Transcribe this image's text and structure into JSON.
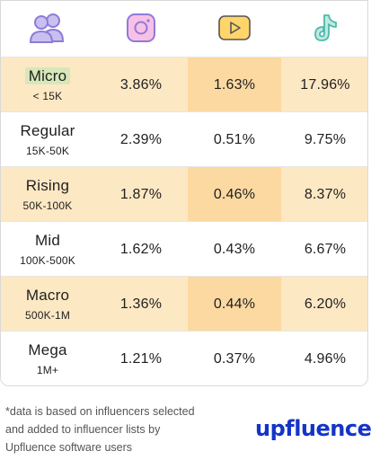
{
  "icons": {
    "users": "users-icon",
    "instagram": "instagram-icon",
    "youtube": "youtube-icon",
    "tiktok": "tiktok-icon"
  },
  "colors": {
    "row_shade": "#fde8c4",
    "youtube_shade": "#fcd9a1",
    "micro_highlight": "#d6e8b9",
    "brand_blue": "#1434c8",
    "icon_purple": "#8f7ad9",
    "icon_pink": "#f7c1e6",
    "icon_yellow": "#ffd56b",
    "icon_teal": "#4fb9a8"
  },
  "chart_data": {
    "type": "table",
    "columns": [
      "",
      "Instagram",
      "YouTube",
      "TikTok"
    ],
    "rows": [
      {
        "tier": "Micro",
        "range": "< 15K",
        "values": [
          "3.86%",
          "1.63%",
          "17.96%"
        ],
        "shaded": true
      },
      {
        "tier": "Regular",
        "range": "15K-50K",
        "values": [
          "2.39%",
          "0.51%",
          "9.75%"
        ],
        "shaded": false
      },
      {
        "tier": "Rising",
        "range": "50K-100K",
        "values": [
          "1.87%",
          "0.46%",
          "8.37%"
        ],
        "shaded": true
      },
      {
        "tier": "Mid",
        "range": "100K-500K",
        "values": [
          "1.62%",
          "0.43%",
          "6.67%"
        ],
        "shaded": false
      },
      {
        "tier": "Macro",
        "range": "500K-1M",
        "values": [
          "1.36%",
          "0.44%",
          "6.20%"
        ],
        "shaded": true
      },
      {
        "tier": "Mega",
        "range": "1M+",
        "values": [
          "1.21%",
          "0.37%",
          "4.96%"
        ],
        "shaded": false
      }
    ]
  },
  "footnote": "*data is based on influencers selected and added to influencer lists by Upfluence software users",
  "logo": "upfluence"
}
